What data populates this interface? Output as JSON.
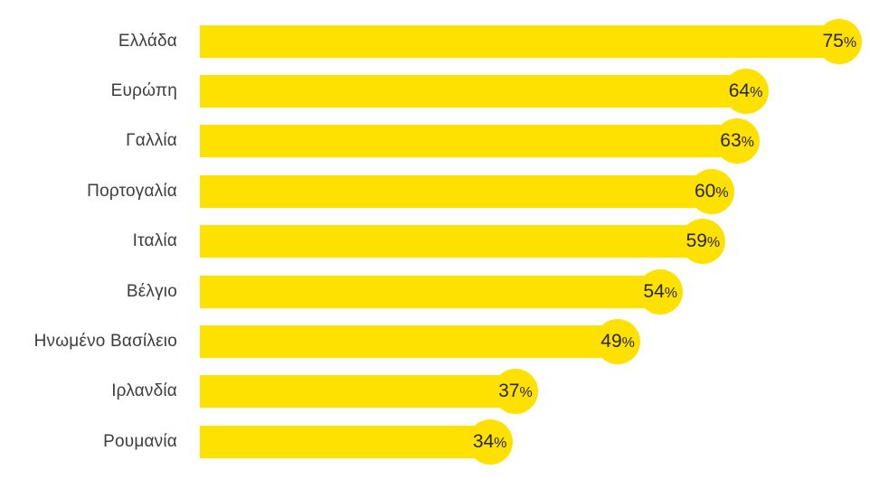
{
  "chart_data": {
    "type": "bar",
    "orientation": "horizontal",
    "title": "",
    "categories": [
      "Ελλάδα",
      "Ευρώπη",
      "Γαλλία",
      "Πορτογαλία",
      "Ιταλία",
      "Βέλγιο",
      "Ηνωμένο Βασίλειο",
      "Ιρλανδία",
      "Ρουμανία"
    ],
    "values": [
      75,
      64,
      63,
      60,
      59,
      54,
      49,
      37,
      34
    ],
    "value_labels": [
      "75%",
      "64%",
      "63%",
      "60%",
      "59%",
      "54%",
      "49%",
      "37%",
      "34%"
    ],
    "percent_sign": "%",
    "unit": "%",
    "xlim": [
      0,
      100
    ],
    "grid": false,
    "axes_visible": false,
    "legend_visible": false,
    "bar_color": "#FFE100",
    "label_color": "#3D3D3D",
    "value_text_color": "#262626",
    "background_color": "#FFFFFF"
  }
}
